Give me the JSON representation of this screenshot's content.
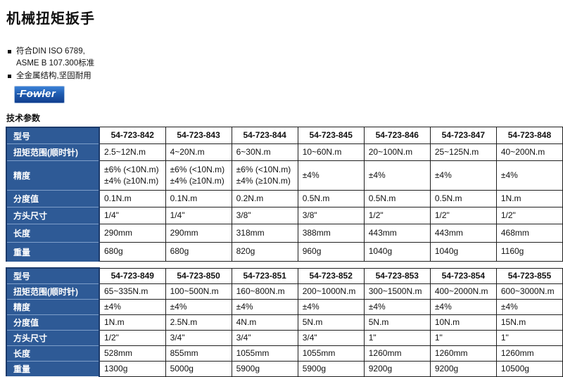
{
  "page": {
    "title": "机械扭矩扳手",
    "section_heading": "技术参数"
  },
  "intro": {
    "bullets": [
      "符合DIN ISO 6789,\nASME B 107.300标准",
      "全金属结构,坚固耐用"
    ]
  },
  "logo": {
    "brand": "Fowler"
  },
  "colors": {
    "header_blue": "#2e5a96",
    "header_blue_border": "#1c3a6a",
    "header_blue_light": "#7e9ec9",
    "logo_blue": "#1f5cb0",
    "grid_black": "#1f1f1f"
  },
  "tables": [
    {
      "row_keys": [
        "model",
        "torque_range",
        "accuracy",
        "graduation",
        "drive_size",
        "length",
        "weight"
      ],
      "row_labels": [
        "型号",
        "扭矩范围(顺时针)",
        "精度",
        "分度值",
        "方头尺寸",
        "长度",
        "重量"
      ],
      "columns": [
        {
          "model": "54-723-842",
          "torque_range": "2.5~12N.m",
          "accuracy": "±6% (<10N.m)\n±4% (≥10N.m)",
          "graduation": "0.1N.m",
          "drive_size": "1/4\"",
          "length": "290mm",
          "weight": "680g"
        },
        {
          "model": "54-723-843",
          "torque_range": "4~20N.m",
          "accuracy": "±6% (<10N.m)\n±4% (≥10N.m)",
          "graduation": "0.1N.m",
          "drive_size": "1/4\"",
          "length": "290mm",
          "weight": "680g"
        },
        {
          "model": "54-723-844",
          "torque_range": "6~30N.m",
          "accuracy": "±6% (<10N.m)\n±4% (≥10N.m)",
          "graduation": "0.2N.m",
          "drive_size": "3/8\"",
          "length": "318mm",
          "weight": "820g"
        },
        {
          "model": "54-723-845",
          "torque_range": "10~60N.m",
          "accuracy": "±4%",
          "graduation": "0.5N.m",
          "drive_size": "3/8\"",
          "length": "388mm",
          "weight": "960g"
        },
        {
          "model": "54-723-846",
          "torque_range": "20~100N.m",
          "accuracy": "±4%",
          "graduation": "0.5N.m",
          "drive_size": "1/2\"",
          "length": "443mm",
          "weight": "1040g"
        },
        {
          "model": "54-723-847",
          "torque_range": "25~125N.m",
          "accuracy": "±4%",
          "graduation": "0.5N.m",
          "drive_size": "1/2\"",
          "length": "443mm",
          "weight": "1040g"
        },
        {
          "model": "54-723-848",
          "torque_range": "40~200N.m",
          "accuracy": "±4%",
          "graduation": "1N.m",
          "drive_size": "1/2\"",
          "length": "468mm",
          "weight": "1160g"
        }
      ]
    },
    {
      "row_keys": [
        "model",
        "torque_range",
        "accuracy",
        "graduation",
        "drive_size",
        "length",
        "weight"
      ],
      "row_labels": [
        "型号",
        "扭矩范围(顺时针)",
        "精度",
        "分度值",
        "方头尺寸",
        "长度",
        "重量"
      ],
      "columns": [
        {
          "model": "54-723-849",
          "torque_range": "65~335N.m",
          "accuracy": "±4%",
          "graduation": "1N.m",
          "drive_size": "1/2\"",
          "length": "528mm",
          "weight": "1300g"
        },
        {
          "model": "54-723-850",
          "torque_range": "100~500N.m",
          "accuracy": "±4%",
          "graduation": "2.5N.m",
          "drive_size": "3/4\"",
          "length": "855mm",
          "weight": "5000g"
        },
        {
          "model": "54-723-851",
          "torque_range": "160~800N.m",
          "accuracy": "±4%",
          "graduation": "4N.m",
          "drive_size": "3/4\"",
          "length": "1055mm",
          "weight": "5900g"
        },
        {
          "model": "54-723-852",
          "torque_range": "200~1000N.m",
          "accuracy": "±4%",
          "graduation": "5N.m",
          "drive_size": "3/4\"",
          "length": "1055mm",
          "weight": "5900g"
        },
        {
          "model": "54-723-853",
          "torque_range": "300~1500N.m",
          "accuracy": "±4%",
          "graduation": "5N.m",
          "drive_size": "1\"",
          "length": "1260mm",
          "weight": "9200g"
        },
        {
          "model": "54-723-854",
          "torque_range": "400~2000N.m",
          "accuracy": "±4%",
          "graduation": "10N.m",
          "drive_size": "1\"",
          "length": "1260mm",
          "weight": "9200g"
        },
        {
          "model": "54-723-855",
          "torque_range": "600~3000N.m",
          "accuracy": "±4%",
          "graduation": "15N.m",
          "drive_size": "1\"",
          "length": "1260mm",
          "weight": "10500g"
        }
      ]
    }
  ]
}
